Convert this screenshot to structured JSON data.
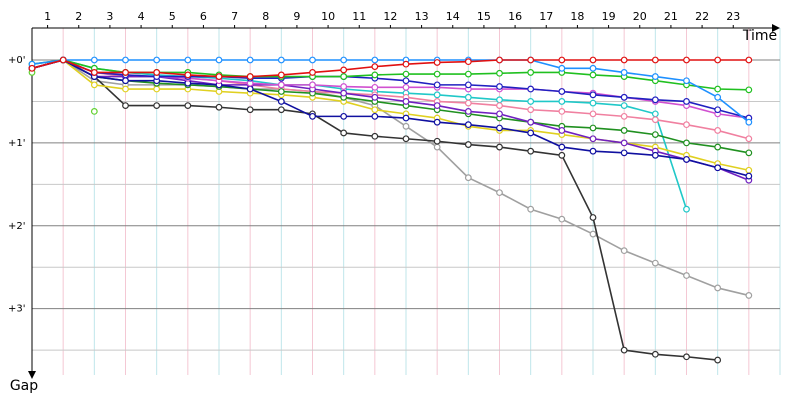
{
  "chart_data": {
    "type": "line",
    "x_label": "Time",
    "y_label": "Gap",
    "x": [
      0,
      1,
      2,
      3,
      4,
      5,
      6,
      7,
      8,
      9,
      10,
      11,
      12,
      13,
      14,
      15,
      16,
      17,
      18,
      19,
      20,
      21,
      22,
      23
    ],
    "xlim": [
      0,
      24
    ],
    "xticks": [
      {
        "value": 0.5,
        "label": "1"
      },
      {
        "value": 1.5,
        "label": "2"
      },
      {
        "value": 2.5,
        "label": "3"
      },
      {
        "value": 3.5,
        "label": "4"
      },
      {
        "value": 4.5,
        "label": "5"
      },
      {
        "value": 5.5,
        "label": "6"
      },
      {
        "value": 6.5,
        "label": "7"
      },
      {
        "value": 7.5,
        "label": "8"
      },
      {
        "value": 8.5,
        "label": "9"
      },
      {
        "value": 9.5,
        "label": "10"
      },
      {
        "value": 10.5,
        "label": "11"
      },
      {
        "value": 11.5,
        "label": "12"
      },
      {
        "value": 12.5,
        "label": "13"
      },
      {
        "value": 13.5,
        "label": "14"
      },
      {
        "value": 14.5,
        "label": "15"
      },
      {
        "value": 15.5,
        "label": "16"
      },
      {
        "value": 16.5,
        "label": "17"
      },
      {
        "value": 17.5,
        "label": "18"
      },
      {
        "value": 18.5,
        "label": "19"
      },
      {
        "value": 19.5,
        "label": "20"
      },
      {
        "value": 20.5,
        "label": "21"
      },
      {
        "value": 21.5,
        "label": "22"
      },
      {
        "value": 22.5,
        "label": "23"
      }
    ],
    "ylim": [
      0,
      3.8
    ],
    "y_inverted": true,
    "yticks": [
      {
        "value": 0,
        "label": "+0'"
      },
      {
        "value": 1,
        "label": "+1'"
      },
      {
        "value": 2,
        "label": "+2'"
      },
      {
        "value": 3,
        "label": "+3'"
      }
    ],
    "minor_yticks": [
      0.5,
      1.5,
      2.5,
      3.5
    ],
    "series": [
      {
        "color": "#a0a0a0",
        "values": [
          0.1,
          0,
          0.25,
          0.3,
          0.3,
          0.3,
          0.32,
          0.35,
          0.35,
          0.38,
          0.45,
          0.55,
          0.8,
          1.05,
          1.42,
          1.6,
          1.8,
          1.92,
          2.1,
          2.3,
          2.45,
          2.6,
          2.75,
          2.84
        ]
      },
      {
        "color": "#333333",
        "values": [
          0.1,
          0,
          0.2,
          0.55,
          0.55,
          0.55,
          0.57,
          0.6,
          0.6,
          0.65,
          0.88,
          0.92,
          0.95,
          0.98,
          1.02,
          1.05,
          1.1,
          1.15,
          1.9,
          3.5,
          3.55,
          3.58,
          3.62,
          null
        ]
      },
      {
        "color": "#20c8c8",
        "values": [
          0.1,
          0,
          0.1,
          0.15,
          0.18,
          0.2,
          0.22,
          0.25,
          0.3,
          0.3,
          0.35,
          0.38,
          0.4,
          0.42,
          0.45,
          0.48,
          0.5,
          0.5,
          0.52,
          0.55,
          0.65,
          1.8,
          null,
          null
        ]
      },
      {
        "color": "#e0d020",
        "values": [
          0.1,
          0,
          0.3,
          0.35,
          0.35,
          0.35,
          0.38,
          0.4,
          0.42,
          0.45,
          0.5,
          0.6,
          0.65,
          0.7,
          0.8,
          0.85,
          0.85,
          0.9,
          0.95,
          1.0,
          1.05,
          1.15,
          1.25,
          1.33
        ]
      },
      {
        "color": "#f080a0",
        "values": [
          0.1,
          0,
          0.15,
          0.2,
          0.2,
          0.22,
          0.25,
          0.3,
          0.35,
          0.38,
          0.4,
          0.42,
          0.45,
          0.5,
          0.52,
          0.55,
          0.6,
          0.62,
          0.65,
          0.68,
          0.72,
          0.78,
          0.85,
          0.95
        ]
      },
      {
        "color": "#209020",
        "values": [
          0.1,
          0,
          0.2,
          0.25,
          0.28,
          0.3,
          0.32,
          0.35,
          0.38,
          0.4,
          0.45,
          0.5,
          0.55,
          0.6,
          0.65,
          0.7,
          0.75,
          0.8,
          0.82,
          0.85,
          0.9,
          1.0,
          1.05,
          1.12
        ]
      },
      {
        "color": "#7020c0",
        "values": [
          0.1,
          0,
          0.2,
          0.2,
          0.2,
          0.25,
          0.3,
          0.3,
          0.3,
          0.35,
          0.4,
          0.45,
          0.5,
          0.55,
          0.62,
          0.65,
          0.75,
          0.85,
          0.95,
          1.0,
          1.1,
          1.2,
          1.3,
          1.45
        ]
      },
      {
        "color": "#1010a0",
        "values": [
          0.1,
          0,
          0.2,
          0.25,
          0.25,
          0.28,
          0.3,
          0.35,
          0.5,
          0.68,
          0.68,
          0.68,
          0.7,
          0.75,
          0.78,
          0.82,
          0.88,
          1.05,
          1.1,
          1.12,
          1.15,
          1.2,
          1.3,
          1.4
        ]
      },
      {
        "color": "#d050d0",
        "values": [
          0.1,
          0,
          0.15,
          0.18,
          0.2,
          0.22,
          0.25,
          0.28,
          0.3,
          0.3,
          0.32,
          0.33,
          0.33,
          0.33,
          0.35,
          0.35,
          0.35,
          0.38,
          0.4,
          0.45,
          0.5,
          0.55,
          0.65,
          0.7
        ]
      },
      {
        "color": "#2020c0",
        "values": [
          0.1,
          0,
          0.15,
          0.18,
          0.2,
          0.2,
          0.2,
          0.22,
          0.22,
          0.2,
          0.2,
          0.22,
          0.25,
          0.3,
          0.3,
          0.32,
          0.35,
          0.38,
          0.42,
          0.45,
          0.48,
          0.5,
          0.6,
          0.7
        ]
      },
      {
        "color": "#20c020",
        "values": [
          0.05,
          0,
          0.1,
          0.15,
          0.15,
          0.15,
          0.18,
          0.2,
          0.2,
          0.2,
          0.2,
          0.18,
          0.17,
          0.17,
          0.17,
          0.16,
          0.15,
          0.15,
          0.18,
          0.2,
          0.25,
          0.3,
          0.35,
          0.36
        ]
      },
      {
        "color": "#60d030",
        "values": [
          0.15,
          null,
          0.62,
          null,
          null,
          null,
          null,
          null,
          null,
          null,
          null,
          null,
          null,
          null,
          null,
          null,
          null,
          null,
          null,
          null,
          null,
          null,
          null,
          null
        ]
      },
      {
        "color": "#1e90ff",
        "values": [
          0.05,
          0,
          0,
          0,
          0,
          0,
          0,
          0,
          0,
          0,
          0,
          0,
          0,
          0,
          0,
          0,
          0,
          0.1,
          0.1,
          0.15,
          0.2,
          0.25,
          0.45,
          0.75
        ]
      },
      {
        "color": "#e01010",
        "values": [
          0.1,
          0,
          0.15,
          0.15,
          0.15,
          0.18,
          0.2,
          0.2,
          0.18,
          0.15,
          0.12,
          0.08,
          0.05,
          0.03,
          0.02,
          0,
          0,
          0,
          0,
          0,
          0,
          0,
          0,
          0
        ]
      }
    ]
  }
}
